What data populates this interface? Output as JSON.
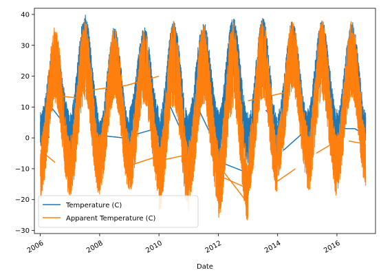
{
  "chart_data": {
    "type": "line",
    "title": "",
    "xlabel": "Date",
    "ylabel": "",
    "xlim": [
      2005.8,
      2017.3
    ],
    "ylim": [
      -31,
      42
    ],
    "x_ticks": [
      2006,
      2008,
      2010,
      2012,
      2014,
      2016
    ],
    "x_tick_labels": [
      "2006",
      "2008",
      "2010",
      "2012",
      "2014",
      "2016"
    ],
    "y_ticks": [
      -30,
      -20,
      -10,
      0,
      10,
      20,
      30,
      40
    ],
    "y_tick_labels": [
      "−30",
      "−20",
      "−10",
      "0",
      "10",
      "20",
      "30",
      "40"
    ],
    "legend": {
      "position": "lower-left",
      "show": true
    },
    "grid": false,
    "series": [
      {
        "name": "Temperature (C)",
        "color": "#1f77b4",
        "years": [
          2006,
          2007,
          2008,
          2009,
          2010,
          2011,
          2012,
          2013,
          2014,
          2015,
          2016
        ],
        "summer_max": [
          31,
          40,
          36,
          36,
          38,
          38,
          39,
          39,
          38,
          38,
          38
        ],
        "winter_min": [
          -4,
          -8,
          -10,
          -4,
          -9,
          -6,
          -8,
          -11,
          -7,
          -6,
          -8
        ],
        "connector_segments": [
          [
            [
              2006.0,
              7
            ],
            [
              2006.3,
              0
            ]
          ],
          [
            [
              2006.2,
              12
            ],
            [
              2007.1,
              1
            ]
          ],
          [
            [
              2007.8,
              1
            ],
            [
              2008.8,
              0
            ]
          ],
          [
            [
              2008.8,
              0
            ],
            [
              2009.9,
              3
            ]
          ],
          [
            [
              2010.2,
              14
            ],
            [
              2011.0,
              -3
            ]
          ],
          [
            [
              2011.3,
              10
            ],
            [
              2012.0,
              -4
            ]
          ],
          [
            [
              2012.1,
              -8
            ],
            [
              2012.9,
              -11
            ]
          ],
          [
            [
              2013.6,
              9
            ],
            [
              2014.0,
              5
            ]
          ],
          [
            [
              2014.2,
              -4
            ],
            [
              2014.9,
              2
            ]
          ],
          [
            [
              2015.8,
              3
            ],
            [
              2016.6,
              3
            ]
          ],
          [
            [
              2016.6,
              3
            ],
            [
              2016.95,
              1
            ]
          ]
        ]
      },
      {
        "name": "Apparent Temperature (C)",
        "color": "#ff7f0e",
        "years": [
          2006,
          2007,
          2008,
          2009,
          2010,
          2011,
          2012,
          2013,
          2014,
          2015,
          2016
        ],
        "summer_max": [
          36,
          38,
          36,
          35,
          38,
          37,
          38,
          39,
          38,
          38,
          38
        ],
        "winter_min": [
          -19,
          -19,
          -17,
          -18,
          -24,
          -21,
          -27,
          -19,
          -13,
          -19,
          -17
        ],
        "connector_segments": [
          [
            [
              2006.0,
              -4
            ],
            [
              2006.5,
              -8
            ]
          ],
          [
            [
              2006.2,
              14
            ],
            [
              2007.2,
              13
            ]
          ],
          [
            [
              2007.3,
              15
            ],
            [
              2008.9,
              17
            ]
          ],
          [
            [
              2008.9,
              17
            ],
            [
              2010.0,
              20
            ]
          ],
          [
            [
              2009.0,
              -9
            ],
            [
              2009.95,
              -6
            ]
          ],
          [
            [
              2010.2,
              -7
            ],
            [
              2011.2,
              -5
            ]
          ],
          [
            [
              2012.1,
              -10
            ],
            [
              2012.9,
              -20
            ]
          ],
          [
            [
              2012.2,
              -13
            ],
            [
              2012.9,
              -16
            ]
          ],
          [
            [
              2013.0,
              12
            ],
            [
              2014.4,
              15
            ]
          ],
          [
            [
              2014.0,
              -14
            ],
            [
              2014.6,
              -10
            ]
          ],
          [
            [
              2015.3,
              -5
            ],
            [
              2016.0,
              -1
            ]
          ],
          [
            [
              2016.4,
              -1
            ],
            [
              2016.95,
              -2
            ]
          ]
        ]
      }
    ]
  }
}
